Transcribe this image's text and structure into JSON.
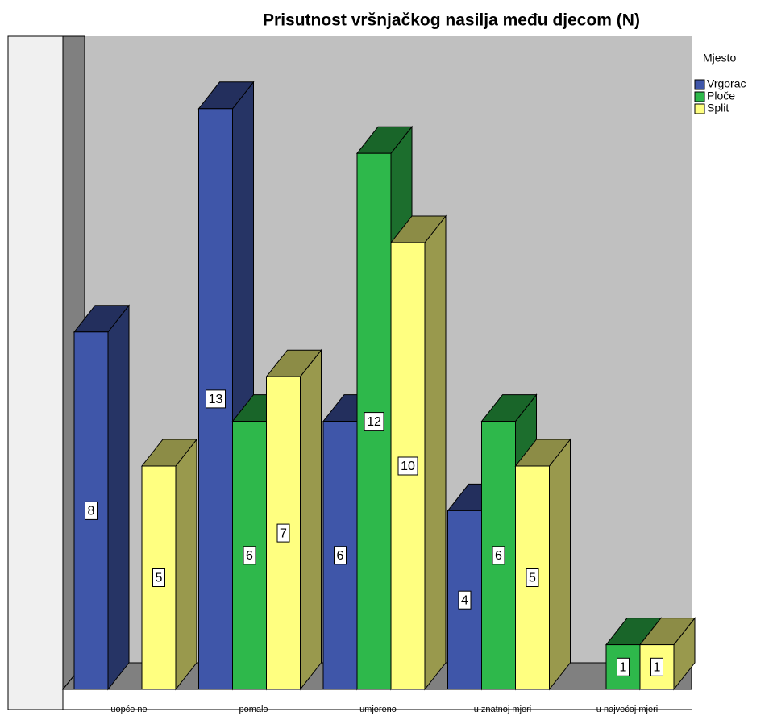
{
  "chart_data": {
    "type": "bar3d",
    "title": "Prisutnost vršnjačkog nasilja među djecom (N)",
    "categories": [
      "uopće ne",
      "pomalo",
      "umjereno",
      "u znatnoj mjeri",
      "u najvećoj mjeri"
    ],
    "legend_title": "Mjesto",
    "legend": "right",
    "series": [
      {
        "name": "Vrgorac",
        "color": "#3f56a9",
        "values": [
          8,
          13,
          6,
          4,
          null
        ]
      },
      {
        "name": "Ploče",
        "color": "#2eb84b",
        "values": [
          null,
          6,
          12,
          6,
          1
        ]
      },
      {
        "name": "Split",
        "color": "#ffff80",
        "values": [
          5,
          7,
          10,
          5,
          1
        ]
      }
    ]
  }
}
